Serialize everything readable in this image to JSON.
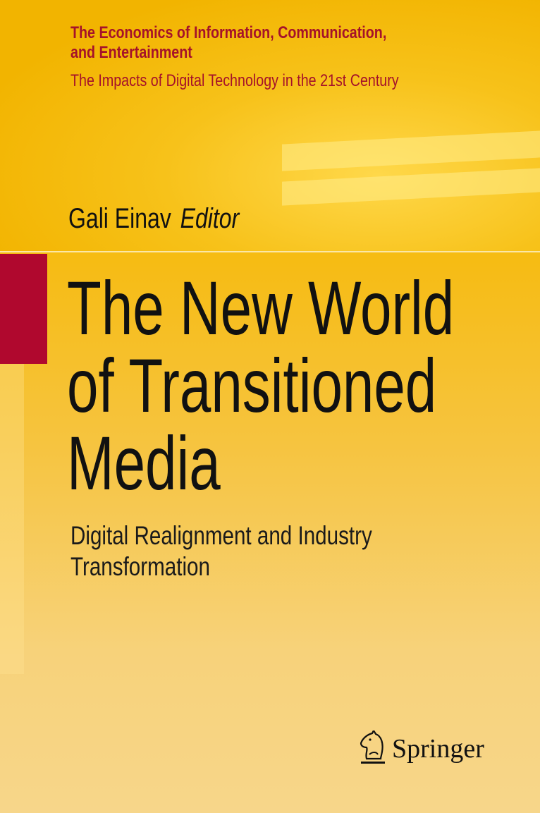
{
  "series": {
    "title_line1": "The Economics of Information, Communication,",
    "title_line2": "and Entertainment",
    "subtitle": "The Impacts of Digital Technology in the 21st Century"
  },
  "editor": {
    "name": "Gali Einav",
    "role": "Editor"
  },
  "book": {
    "title_lines": [
      "The New World",
      "of Transitioned",
      "Media"
    ],
    "subtitle_lines": [
      "Digital Realignment and Industry",
      "Transformation"
    ]
  },
  "publisher": {
    "name": "Springer",
    "logo_icon": "knight-chess-horse-icon"
  },
  "colors": {
    "background": "#f5b400",
    "accent_red": "#b0082e",
    "series_text": "#a5122a"
  }
}
